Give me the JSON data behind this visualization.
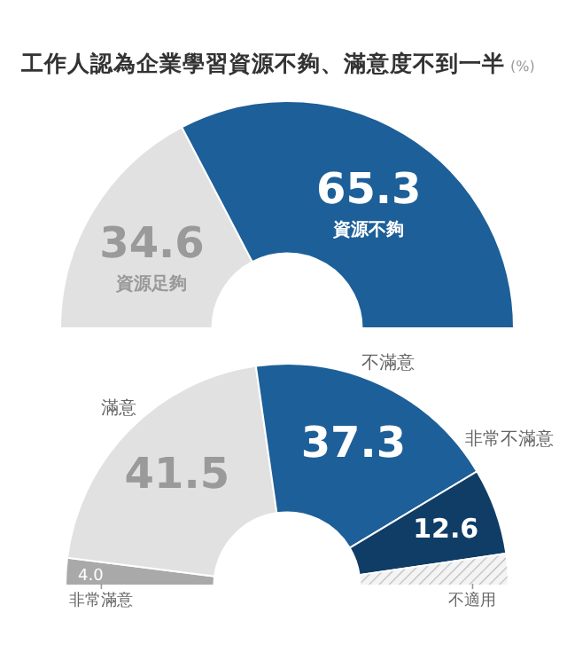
{
  "chart_data": [
    {
      "type": "donut",
      "title": "工作人認為企業學習資源不夠、滿意度不到一半",
      "subtitle": "(%)",
      "categories": [
        "資源足夠",
        "資源不夠"
      ],
      "values": [
        34.6,
        65.3
      ],
      "colors": [
        "#e1e1e1",
        "#1d5f98"
      ],
      "data_labels": true
    },
    {
      "type": "donut",
      "categories": [
        "非常滿意",
        "滿意",
        "不滿意",
        "非常不滿意",
        "不適用"
      ],
      "values": [
        4.0,
        41.5,
        37.3,
        12.6,
        4.6
      ],
      "colors": [
        "#a9a9a9",
        "#e1e1e1",
        "#1d5f98",
        "#0f3d66",
        "#f4f4f4"
      ],
      "value_labels": [
        "4.0",
        "41.5",
        "37.3",
        "12.6",
        null
      ]
    }
  ]
}
